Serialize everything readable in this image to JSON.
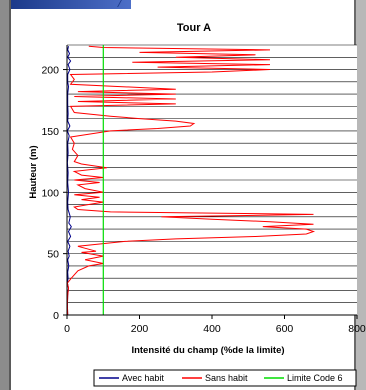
{
  "chart_data": {
    "type": "line",
    "title": "Tour A",
    "xlabel": "Intensité du champ (%de la limite)",
    "ylabel": "Hauteur (m)",
    "xlim": [
      0,
      800
    ],
    "ylim": [
      0,
      220
    ],
    "xticks": [
      "0",
      "200",
      "400",
      "600",
      "800"
    ],
    "yticks": [
      "0",
      "50",
      "100",
      "150",
      "200"
    ],
    "grid": "horizontal",
    "legend_position": "bottom",
    "series": [
      {
        "name": "Avec habit",
        "color": "#00008b",
        "points": [
          [
            2,
            0
          ],
          [
            1,
            8
          ],
          [
            2,
            16
          ],
          [
            4,
            22
          ],
          [
            1,
            26
          ],
          [
            3,
            30
          ],
          [
            2,
            35
          ],
          [
            5,
            40
          ],
          [
            2,
            45
          ],
          [
            6,
            48
          ],
          [
            3,
            52
          ],
          [
            8,
            56
          ],
          [
            2,
            60
          ],
          [
            10,
            64
          ],
          [
            4,
            68
          ],
          [
            12,
            72
          ],
          [
            5,
            75
          ],
          [
            9,
            80
          ],
          [
            3,
            86
          ],
          [
            2,
            92
          ],
          [
            4,
            100
          ],
          [
            2,
            108
          ],
          [
            3,
            116
          ],
          [
            1,
            124
          ],
          [
            3,
            132
          ],
          [
            2,
            140
          ],
          [
            6,
            146
          ],
          [
            1,
            150
          ],
          [
            8,
            154
          ],
          [
            2,
            158
          ],
          [
            3,
            164
          ],
          [
            2,
            172
          ],
          [
            2,
            180
          ],
          [
            4,
            186
          ],
          [
            2,
            190
          ],
          [
            2,
            196
          ],
          [
            8,
            200
          ],
          [
            3,
            204
          ],
          [
            10,
            207
          ],
          [
            2,
            210
          ],
          [
            7,
            213
          ],
          [
            2,
            216
          ],
          [
            4,
            219
          ]
        ]
      },
      {
        "name": "Sans habit",
        "color": "#ff0000",
        "points": [
          [
            2,
            0
          ],
          [
            1,
            8
          ],
          [
            2,
            16
          ],
          [
            4,
            22
          ],
          [
            1,
            26
          ],
          [
            12,
            30
          ],
          [
            30,
            36
          ],
          [
            60,
            40
          ],
          [
            100,
            42
          ],
          [
            50,
            45
          ],
          [
            100,
            48
          ],
          [
            40,
            51
          ],
          [
            80,
            52
          ],
          [
            30,
            56
          ],
          [
            160,
            60
          ],
          [
            300,
            62
          ],
          [
            520,
            64
          ],
          [
            660,
            66
          ],
          [
            680,
            68
          ],
          [
            660,
            70
          ],
          [
            540,
            72
          ],
          [
            680,
            74
          ],
          [
            560,
            76
          ],
          [
            400,
            78
          ],
          [
            260,
            80
          ],
          [
            680,
            82
          ],
          [
            120,
            84
          ],
          [
            30,
            86
          ],
          [
            20,
            88
          ],
          [
            60,
            90
          ],
          [
            100,
            92
          ],
          [
            40,
            94
          ],
          [
            90,
            96
          ],
          [
            20,
            98
          ],
          [
            100,
            100
          ],
          [
            50,
            103
          ],
          [
            30,
            106
          ],
          [
            90,
            108
          ],
          [
            20,
            110
          ],
          [
            100,
            112
          ],
          [
            40,
            114
          ],
          [
            20,
            117
          ],
          [
            110,
            120
          ],
          [
            40,
            123
          ],
          [
            20,
            125
          ],
          [
            30,
            130
          ],
          [
            15,
            135
          ],
          [
            20,
            140
          ],
          [
            10,
            145
          ],
          [
            120,
            150
          ],
          [
            250,
            152
          ],
          [
            340,
            154
          ],
          [
            350,
            156
          ],
          [
            300,
            158
          ],
          [
            200,
            160
          ],
          [
            120,
            162
          ],
          [
            20,
            165
          ],
          [
            10,
            170
          ],
          [
            300,
            172
          ],
          [
            30,
            174
          ],
          [
            300,
            176
          ],
          [
            20,
            178
          ],
          [
            300,
            180
          ],
          [
            30,
            182
          ],
          [
            300,
            184
          ],
          [
            10,
            188
          ],
          [
            20,
            192
          ],
          [
            10,
            196
          ],
          [
            400,
            198
          ],
          [
            560,
            200
          ],
          [
            250,
            202
          ],
          [
            560,
            204
          ],
          [
            180,
            206
          ],
          [
            560,
            208
          ],
          [
            300,
            210
          ],
          [
            520,
            212
          ],
          [
            200,
            214
          ],
          [
            560,
            216
          ],
          [
            100,
            218
          ],
          [
            60,
            219
          ]
        ]
      },
      {
        "name": "Limite Code 6",
        "color": "#00dd00",
        "points": [
          [
            100,
            0
          ],
          [
            100,
            220
          ]
        ]
      }
    ]
  }
}
